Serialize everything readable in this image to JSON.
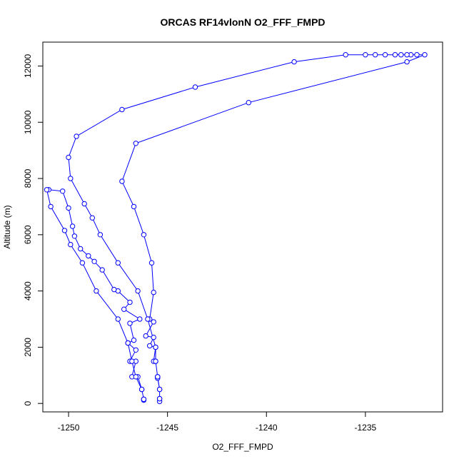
{
  "chart_data": {
    "type": "line",
    "title": "ORCAS RF14vlonN O2_FFF_FMPD",
    "xlabel": "O2_FFF_FMPD",
    "ylabel": "Altitude (m)",
    "xlim": [
      -1251.3,
      -1231.1
    ],
    "ylim": [
      -300,
      12850
    ],
    "xticks": [
      -1250,
      -1245,
      -1240,
      -1235
    ],
    "xtick_labels": [
      "-1250",
      "-1245",
      "-1240",
      "-1235"
    ],
    "yticks": [
      0,
      2000,
      4000,
      6000,
      8000,
      10000,
      12000
    ],
    "ytick_labels": [
      "0",
      "2000",
      "4000",
      "6000",
      "8000",
      "10000",
      "12000"
    ],
    "grid": false,
    "marker": "open-circle",
    "series": [
      {
        "values": [
          [
            -1246.2,
            120
          ],
          [
            -1246.2,
            150
          ],
          [
            -1246.3,
            500
          ],
          [
            -1246.5,
            950
          ],
          [
            -1246.8,
            950
          ],
          [
            -1246.6,
            1500
          ],
          [
            -1246.9,
            1500
          ],
          [
            -1246.6,
            1900
          ],
          [
            -1247.0,
            2150
          ],
          [
            -1246.7,
            2250
          ],
          [
            -1246.9,
            2850
          ],
          [
            -1246.4,
            3000
          ],
          [
            -1247.2,
            3350
          ],
          [
            -1246.9,
            3600
          ],
          [
            -1247.5,
            4000
          ],
          [
            -1247.7,
            4050
          ],
          [
            -1248.3,
            4750
          ],
          [
            -1248.7,
            5050
          ],
          [
            -1249.0,
            5250
          ],
          [
            -1249.4,
            5500
          ],
          [
            -1249.7,
            5950
          ],
          [
            -1249.8,
            6300
          ],
          [
            -1250.0,
            6950
          ],
          [
            -1250.3,
            7550
          ],
          [
            -1251.0,
            7600
          ],
          [
            -1251.1,
            7600
          ],
          [
            -1250.9,
            7000
          ],
          [
            -1250.2,
            6150
          ],
          [
            -1249.9,
            5650
          ],
          [
            -1249.3,
            5000
          ],
          [
            -1248.6,
            4000
          ],
          [
            -1247.5,
            3000
          ],
          [
            -1247.0,
            2150
          ],
          [
            -1246.8,
            1500
          ],
          [
            -1246.6,
            950
          ],
          [
            -1246.3,
            500
          ],
          [
            -1246.2,
            150
          ]
        ]
      },
      {
        "values": [
          [
            -1245.4,
            70
          ],
          [
            -1245.4,
            170
          ],
          [
            -1245.4,
            500
          ],
          [
            -1245.5,
            900
          ],
          [
            -1245.5,
            950
          ],
          [
            -1245.6,
            1500
          ],
          [
            -1245.7,
            1500
          ],
          [
            -1245.6,
            2000
          ],
          [
            -1245.9,
            2050
          ],
          [
            -1245.7,
            2350
          ],
          [
            -1246.1,
            2400
          ],
          [
            -1245.7,
            2900
          ],
          [
            -1245.9,
            3000
          ],
          [
            -1245.7,
            3950
          ],
          [
            -1245.8,
            5000
          ],
          [
            -1246.2,
            6000
          ],
          [
            -1246.7,
            7000
          ],
          [
            -1247.3,
            7900
          ],
          [
            -1246.6,
            9250
          ],
          [
            -1240.9,
            10700
          ],
          [
            -1232.9,
            12150
          ],
          [
            -1232.0,
            12400
          ],
          [
            -1232.4,
            12400
          ],
          [
            -1232.7,
            12400
          ],
          [
            -1232.9,
            12400
          ],
          [
            -1233.2,
            12400
          ],
          [
            -1233.5,
            12400
          ],
          [
            -1234.0,
            12400
          ],
          [
            -1234.5,
            12400
          ],
          [
            -1235.0,
            12400
          ],
          [
            -1236.0,
            12400
          ],
          [
            -1238.6,
            12150
          ],
          [
            -1243.6,
            11250
          ],
          [
            -1247.3,
            10450
          ],
          [
            -1249.6,
            9500
          ],
          [
            -1250.0,
            8750
          ],
          [
            -1249.9,
            8000
          ],
          [
            -1249.2,
            7100
          ],
          [
            -1248.8,
            6600
          ],
          [
            -1248.4,
            6000
          ],
          [
            -1247.5,
            5000
          ],
          [
            -1246.5,
            4000
          ],
          [
            -1246.0,
            3000
          ],
          [
            -1245.6,
            2000
          ],
          [
            -1245.6,
            1500
          ],
          [
            -1245.5,
            950
          ],
          [
            -1245.4,
            500
          ],
          [
            -1245.4,
            170
          ]
        ]
      }
    ],
    "colors": {
      "series": "#0000ff",
      "axis": "#000000",
      "background": "#ffffff"
    }
  }
}
